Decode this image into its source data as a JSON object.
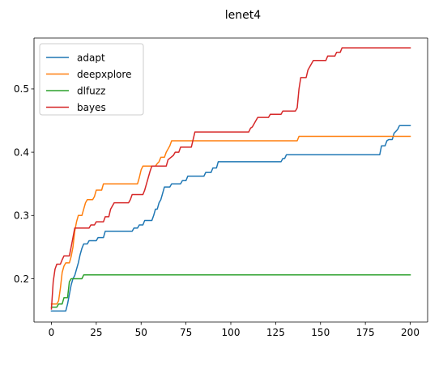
{
  "chart_data": {
    "type": "line",
    "title": "lenet4",
    "xlabel": "",
    "ylabel": "",
    "xlim": [
      -9.7,
      209.7
    ],
    "ylim": [
      0.1315,
      0.5805
    ],
    "xticks": [
      0,
      25,
      50,
      75,
      100,
      125,
      150,
      175,
      200
    ],
    "yticks": [
      0.2,
      0.3,
      0.4,
      0.5
    ],
    "xtick_labels": [
      "0",
      "25",
      "50",
      "75",
      "100",
      "125",
      "150",
      "175",
      "200"
    ],
    "ytick_labels": [
      "0.2",
      "0.3",
      "0.4",
      "0.5"
    ],
    "grid": false,
    "legend": "top-left",
    "series": [
      {
        "name": "adapt",
        "color": "#1f77b4",
        "points": [
          [
            0,
            0.149
          ],
          [
            8,
            0.149
          ],
          [
            9,
            0.16
          ],
          [
            10,
            0.175
          ],
          [
            11,
            0.19
          ],
          [
            12,
            0.2
          ],
          [
            13,
            0.205
          ],
          [
            14,
            0.215
          ],
          [
            15,
            0.225
          ],
          [
            16,
            0.238
          ],
          [
            17,
            0.248
          ],
          [
            18,
            0.255
          ],
          [
            20,
            0.255
          ],
          [
            21,
            0.26
          ],
          [
            25,
            0.26
          ],
          [
            26,
            0.265
          ],
          [
            29,
            0.265
          ],
          [
            30,
            0.275
          ],
          [
            45,
            0.275
          ],
          [
            46,
            0.28
          ],
          [
            48,
            0.28
          ],
          [
            49,
            0.285
          ],
          [
            51,
            0.285
          ],
          [
            52,
            0.292
          ],
          [
            56,
            0.292
          ],
          [
            57,
            0.3
          ],
          [
            58,
            0.31
          ],
          [
            59,
            0.31
          ],
          [
            60,
            0.32
          ],
          [
            61,
            0.325
          ],
          [
            62,
            0.335
          ],
          [
            63,
            0.345
          ],
          [
            66,
            0.345
          ],
          [
            67,
            0.35
          ],
          [
            72,
            0.35
          ],
          [
            73,
            0.355
          ],
          [
            75,
            0.355
          ],
          [
            76,
            0.362
          ],
          [
            85,
            0.362
          ],
          [
            86,
            0.368
          ],
          [
            89,
            0.368
          ],
          [
            90,
            0.375
          ],
          [
            92,
            0.375
          ],
          [
            93,
            0.385
          ],
          [
            128,
            0.385
          ],
          [
            129,
            0.39
          ],
          [
            130,
            0.39
          ],
          [
            131,
            0.396
          ],
          [
            183,
            0.396
          ],
          [
            184,
            0.41
          ],
          [
            186,
            0.41
          ],
          [
            187,
            0.418
          ],
          [
            188,
            0.42
          ],
          [
            190,
            0.42
          ],
          [
            191,
            0.43
          ],
          [
            193,
            0.436
          ],
          [
            194,
            0.442
          ],
          [
            200,
            0.442
          ]
        ]
      },
      {
        "name": "deepxplore",
        "color": "#ff7f0e",
        "points": [
          [
            0,
            0.16
          ],
          [
            3,
            0.16
          ],
          [
            4,
            0.165
          ],
          [
            5,
            0.185
          ],
          [
            6,
            0.21
          ],
          [
            7,
            0.22
          ],
          [
            8,
            0.225
          ],
          [
            10,
            0.225
          ],
          [
            11,
            0.235
          ],
          [
            12,
            0.25
          ],
          [
            13,
            0.275
          ],
          [
            14,
            0.29
          ],
          [
            15,
            0.3
          ],
          [
            17,
            0.3
          ],
          [
            18,
            0.31
          ],
          [
            19,
            0.32
          ],
          [
            20,
            0.325
          ],
          [
            23,
            0.325
          ],
          [
            24,
            0.33
          ],
          [
            25,
            0.34
          ],
          [
            28,
            0.34
          ],
          [
            29,
            0.35
          ],
          [
            48,
            0.35
          ],
          [
            49,
            0.36
          ],
          [
            50,
            0.372
          ],
          [
            51,
            0.378
          ],
          [
            58,
            0.378
          ],
          [
            59,
            0.382
          ],
          [
            60,
            0.385
          ],
          [
            61,
            0.392
          ],
          [
            63,
            0.392
          ],
          [
            64,
            0.4
          ],
          [
            65,
            0.405
          ],
          [
            66,
            0.41
          ],
          [
            67,
            0.418
          ],
          [
            137,
            0.418
          ],
          [
            138,
            0.425
          ],
          [
            200,
            0.425
          ]
        ]
      },
      {
        "name": "dlfuzz",
        "color": "#2ca02c",
        "points": [
          [
            0,
            0.155
          ],
          [
            3,
            0.155
          ],
          [
            4,
            0.16
          ],
          [
            6,
            0.16
          ],
          [
            7,
            0.17
          ],
          [
            9,
            0.17
          ],
          [
            10,
            0.195
          ],
          [
            11,
            0.2
          ],
          [
            17,
            0.2
          ],
          [
            18,
            0.206
          ],
          [
            200,
            0.206
          ]
        ]
      },
      {
        "name": "bayes",
        "color": "#d62728",
        "points": [
          [
            0,
            0.152
          ],
          [
            1,
            0.195
          ],
          [
            2,
            0.215
          ],
          [
            3,
            0.223
          ],
          [
            5,
            0.223
          ],
          [
            6,
            0.23
          ],
          [
            7,
            0.236
          ],
          [
            10,
            0.236
          ],
          [
            11,
            0.25
          ],
          [
            12,
            0.265
          ],
          [
            13,
            0.28
          ],
          [
            21,
            0.28
          ],
          [
            22,
            0.285
          ],
          [
            24,
            0.285
          ],
          [
            25,
            0.29
          ],
          [
            29,
            0.29
          ],
          [
            30,
            0.298
          ],
          [
            32,
            0.298
          ],
          [
            33,
            0.31
          ],
          [
            34,
            0.315
          ],
          [
            35,
            0.32
          ],
          [
            43,
            0.32
          ],
          [
            44,
            0.325
          ],
          [
            45,
            0.333
          ],
          [
            51,
            0.333
          ],
          [
            52,
            0.34
          ],
          [
            53,
            0.35
          ],
          [
            54,
            0.36
          ],
          [
            55,
            0.37
          ],
          [
            56,
            0.378
          ],
          [
            64,
            0.378
          ],
          [
            65,
            0.388
          ],
          [
            68,
            0.395
          ],
          [
            69,
            0.4
          ],
          [
            71,
            0.4
          ],
          [
            72,
            0.408
          ],
          [
            78,
            0.408
          ],
          [
            79,
            0.42
          ],
          [
            80,
            0.432
          ],
          [
            110,
            0.432
          ],
          [
            111,
            0.438
          ],
          [
            112,
            0.44
          ],
          [
            114,
            0.45
          ],
          [
            115,
            0.455
          ],
          [
            121,
            0.455
          ],
          [
            122,
            0.46
          ],
          [
            128,
            0.46
          ],
          [
            129,
            0.465
          ],
          [
            136,
            0.465
          ],
          [
            137,
            0.47
          ],
          [
            138,
            0.5
          ],
          [
            139,
            0.518
          ],
          [
            142,
            0.518
          ],
          [
            143,
            0.53
          ],
          [
            145,
            0.54
          ],
          [
            146,
            0.545
          ],
          [
            153,
            0.545
          ],
          [
            154,
            0.552
          ],
          [
            158,
            0.552
          ],
          [
            159,
            0.558
          ],
          [
            161,
            0.558
          ],
          [
            162,
            0.565
          ],
          [
            200,
            0.565
          ]
        ]
      }
    ]
  }
}
